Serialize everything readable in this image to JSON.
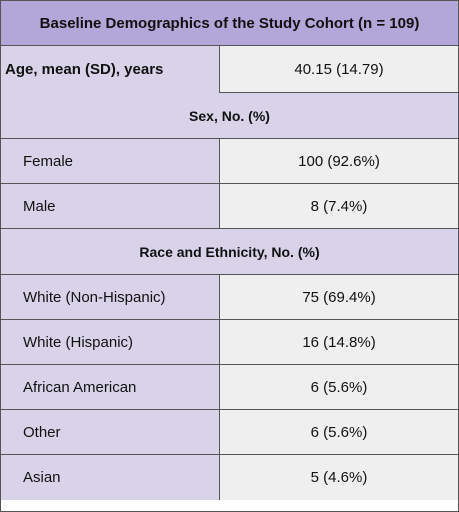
{
  "table": {
    "title": "Baseline Demographics of the Study Cohort (n = 109)",
    "age": {
      "label": "Age, mean (SD), years",
      "value": "40.15 (14.79)"
    },
    "sex": {
      "heading": "Sex, No. (%)",
      "rows": [
        {
          "label": "Female",
          "value": "100 (92.6%)"
        },
        {
          "label": "Male",
          "value": "8 (7.4%)"
        }
      ]
    },
    "race": {
      "heading": "Race and Ethnicity, No. (%)",
      "rows": [
        {
          "label": "White (Non-Hispanic)",
          "value": "75 (69.4%)"
        },
        {
          "label": "White (Hispanic)",
          "value": "16 (14.8%)"
        },
        {
          "label": "African American",
          "value": "6 (5.6%)"
        },
        {
          "label": "Other",
          "value": "6 (5.6%)"
        },
        {
          "label": "Asian",
          "value": "5 (4.6%)"
        }
      ]
    }
  }
}
